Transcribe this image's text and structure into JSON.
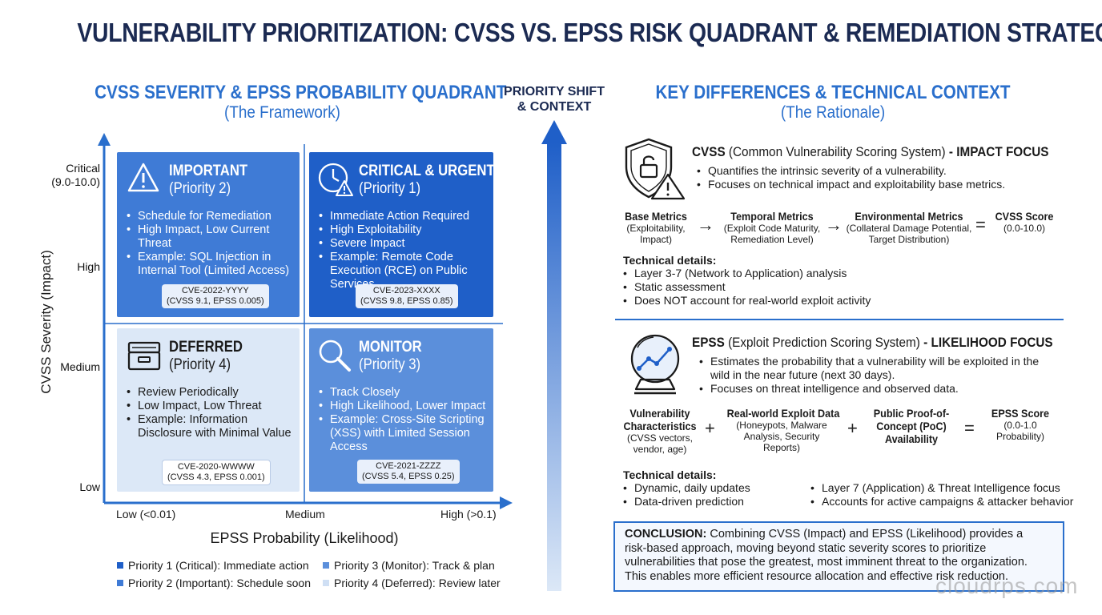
{
  "title": "VULNERABILITY PRIORITIZATION: CVSS VS. EPSS RISK QUADRANT & REMEDIATION STRATEGY",
  "left": {
    "title": "CVSS SEVERITY & EPSS PROBABILITY QUADRANT",
    "subtitle": "(The Framework)",
    "y_axis_label": "CVSS Severity (Impact)",
    "y_ticks": {
      "critical": "Critical",
      "critical_range": "(9.0-10.0)",
      "high": "High",
      "medium": "Medium",
      "low": "Low"
    },
    "x_axis_label": "EPSS Probability (Likelihood)",
    "x_ticks": {
      "low": "Low (<0.01)",
      "medium": "Medium",
      "high": "High (>0.1)"
    },
    "quadrants": {
      "important": {
        "title": "IMPORTANT",
        "priority": "(Priority 2)",
        "items": [
          "Schedule for Remediation",
          "High Impact, Low Current Threat",
          "Example: SQL Injection in Internal Tool (Limited Access)"
        ],
        "cve": "CVE-2022-YYYY",
        "scores": "(CVSS 9.1, EPSS 0.005)"
      },
      "critical": {
        "title": "CRITICAL & URGENT",
        "priority": "(Priority 1)",
        "items": [
          "Immediate Action Required",
          "High Exploitability",
          "Severe Impact",
          "Example: Remote Code Execution (RCE) on Public Services"
        ],
        "cve": "CVE-2023-XXXX",
        "scores": "(CVSS 9.8, EPSS 0.85)"
      },
      "deferred": {
        "title": "DEFERRED",
        "priority": "(Priority 4)",
        "items": [
          "Review Periodically",
          "Low Impact, Low Threat",
          "Example: Information Disclosure with Minimal Value"
        ],
        "cve": "CVE-2020-WWWW",
        "scores": "(CVSS 4.3, EPSS 0.001)"
      },
      "monitor": {
        "title": "MONITOR",
        "priority": "(Priority 3)",
        "items": [
          "Track Closely",
          "High Likelihood, Lower Impact",
          "Example: Cross-Site Scripting (XSS) with Limited Session Access"
        ],
        "cve": "CVE-2021-ZZZZ",
        "scores": "(CVSS 5.4, EPSS 0.25)"
      }
    },
    "legend": [
      {
        "label": "Priority 1 (Critical): Immediate action",
        "color": "#1f5fc8"
      },
      {
        "label": "Priority 3 (Monitor): Track & plan",
        "color": "#5b8fdb"
      },
      {
        "label": "Priority 2 (Important): Schedule soon",
        "color": "#3f7bd6"
      },
      {
        "label": "Priority 4 (Deferred): Review later",
        "color": "#cfdff4"
      }
    ]
  },
  "middle": {
    "label_line1": "PRIORITY SHIFT",
    "label_line2": "& CONTEXT"
  },
  "right": {
    "title": "KEY DIFFERENCES & TECHNICAL CONTEXT",
    "subtitle": "(The Rationale)",
    "cvss": {
      "head_bold": "CVSS",
      "head_text": " (Common Vulnerability Scoring System) ",
      "head_focus": "- IMPACT FOCUS",
      "bullets": [
        "Quantifies the intrinsic severity of a vulnerability.",
        "Focuses on technical impact and exploitability base metrics."
      ],
      "metrics": [
        {
          "title": "Base Metrics",
          "desc1": "(Exploitability,",
          "desc2": "Impact)"
        },
        {
          "title": "Temporal Metrics",
          "desc1": "(Exploit Code Maturity,",
          "desc2": "Remediation Level)"
        },
        {
          "title": "Environmental Metrics",
          "desc1": "(Collateral Damage Potential,",
          "desc2": "Target Distribution)"
        },
        {
          "title": "CVSS Score",
          "desc1": "(0.0-10.0)",
          "desc2": ""
        }
      ],
      "ops": [
        "→",
        "→",
        "="
      ],
      "tech_title": "Technical details:",
      "tech": [
        "Layer 3-7 (Network to Application) analysis",
        "Static assessment",
        "Does NOT account for real-world exploit activity"
      ]
    },
    "epss": {
      "head_bold": "EPSS",
      "head_text": " (Exploit Prediction Scoring System) ",
      "head_focus": "- LIKELIHOOD FOCUS",
      "bullets": [
        "Estimates the probability that a vulnerability will be exploited in the wild in the near future (next 30 days).",
        "Focuses on threat intelligence and observed data."
      ],
      "metrics": [
        {
          "title1": "Vulnerability",
          "title2": "Characteristics",
          "desc1": "(CVSS vectors,",
          "desc2": "vendor, age)",
          "desc3": ""
        },
        {
          "title1": "Real-world Exploit Data",
          "title2": "",
          "desc1": "(Honeypots, Malware",
          "desc2": "Analysis, Security",
          "desc3": "Reports)"
        },
        {
          "title1": "Public Proof-of-",
          "title2": "Concept (PoC)",
          "title3": "Availability",
          "desc1": "",
          "desc2": "",
          "desc3": ""
        },
        {
          "title1": "EPSS Score",
          "title2": "",
          "desc1": "(0.0-1.0",
          "desc2": "Probability)",
          "desc3": ""
        }
      ],
      "ops": [
        "+",
        "+",
        "="
      ],
      "tech_title": "Technical details:",
      "tech_left": [
        "Dynamic, daily updates",
        "Data-driven prediction"
      ],
      "tech_right": [
        "Layer 7 (Application) & Threat Intelligence focus",
        "Accounts for active campaigns & attacker behavior"
      ]
    },
    "conclusion": {
      "label": "CONCLUSION:",
      "line1": " Combining CVSS (Impact) and EPSS (Likelihood) provides a",
      "line2": "risk-based approach, moving beyond static severity scores to prioritize",
      "line3": "vulnerabilities that pose the greatest, most imminent threat to the organization.",
      "line4": "This enables more efficient resource allocation and effective risk reduction."
    }
  },
  "watermark": "cloudrps.com",
  "colors": {
    "accent": "#2a6fcc",
    "title": "#1b2a52",
    "q1": "#1f5fc8",
    "q2": "#3f7bd6",
    "q3": "#5b8fdb",
    "q4": "#dce8f7"
  }
}
